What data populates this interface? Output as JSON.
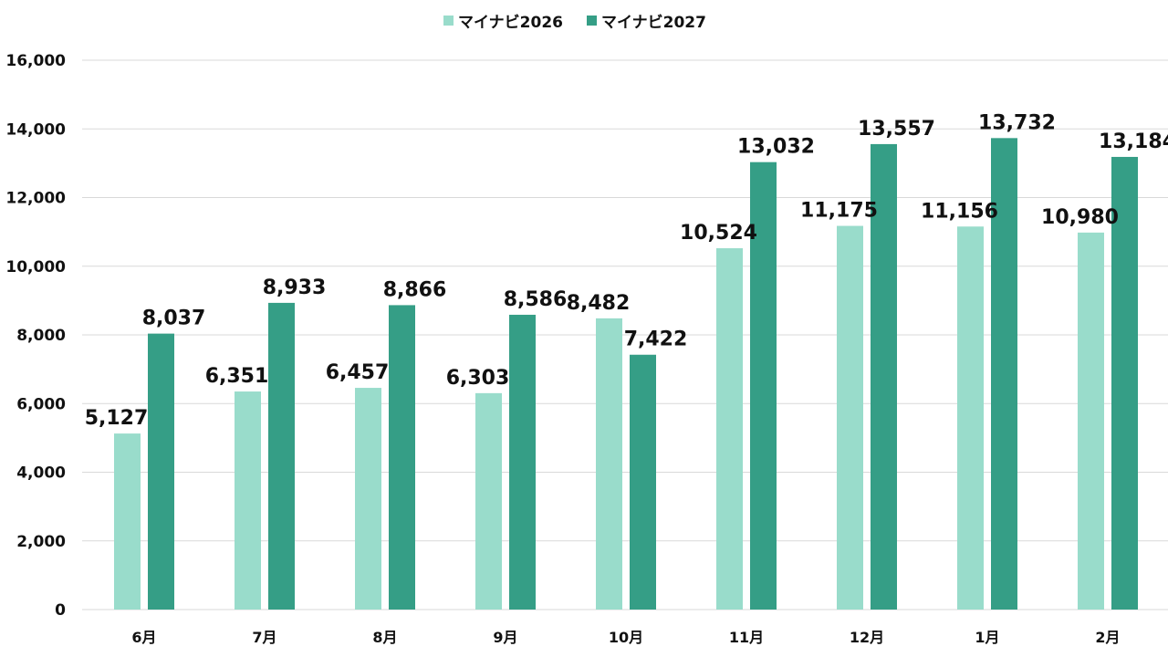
{
  "chart_data": {
    "type": "bar",
    "title": "",
    "xlabel": "",
    "ylabel": "",
    "categories": [
      "6月",
      "7月",
      "8月",
      "9月",
      "10月",
      "11月",
      "12月",
      "1月",
      "2月"
    ],
    "series": [
      {
        "name": "マイナビ2026",
        "color": "#99dccb",
        "values": [
          5127,
          6351,
          6457,
          6303,
          8482,
          10524,
          11175,
          11156,
          10980
        ]
      },
      {
        "name": "マイナビ2027",
        "color": "#359e86",
        "values": [
          8037,
          8933,
          8866,
          8586,
          7422,
          13032,
          13557,
          13732,
          13184
        ]
      }
    ],
    "ylim": [
      0,
      16000
    ],
    "yticks": [
      0,
      2000,
      4000,
      6000,
      8000,
      10000,
      12000,
      14000,
      16000
    ],
    "ytick_labels": [
      "0",
      "2,000",
      "4,000",
      "6,000",
      "8,000",
      "10,000",
      "12,000",
      "14,000",
      "16,000"
    ],
    "grid": true,
    "legend_position": "top-center",
    "data_labels": true
  }
}
